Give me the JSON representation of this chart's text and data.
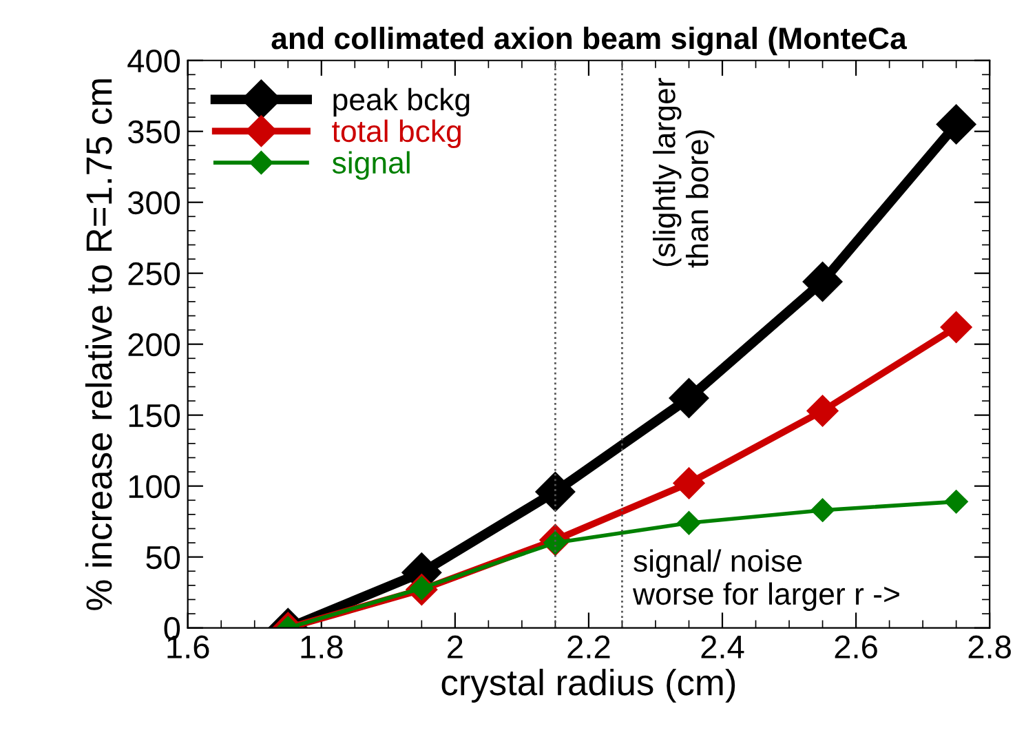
{
  "chart_data": {
    "type": "line",
    "title": "and collimated axion beam signal (MonteCa",
    "xlabel": "crystal radius (cm)",
    "ylabel": "% increase relative to R=1.75 cm",
    "x": [
      1.75,
      1.95,
      2.15,
      2.35,
      2.55,
      2.75
    ],
    "series": [
      {
        "name": "peak bckg",
        "color": "#000000",
        "values": [
          0,
          39,
          96,
          162,
          244,
          355
        ]
      },
      {
        "name": "total bckg",
        "color": "#cc0000",
        "values": [
          0,
          27,
          62,
          102,
          153,
          212
        ]
      },
      {
        "name": "signal",
        "color": "#008000",
        "values": [
          0,
          28,
          60,
          74,
          83,
          89
        ]
      }
    ],
    "xlim": [
      1.6,
      2.8
    ],
    "xticks": [
      1.6,
      1.8,
      2,
      2.2,
      2.4,
      2.6,
      2.8
    ],
    "ylim": [
      0,
      400
    ],
    "yticks": [
      0,
      50,
      100,
      150,
      200,
      250,
      300,
      350,
      400
    ],
    "ref_lines": [
      {
        "axis": "x",
        "value": 2.15,
        "color": "#555555",
        "line_style": "dotted"
      },
      {
        "axis": "x",
        "value": 2.25,
        "color": "#555555",
        "line_style": "dotted"
      }
    ],
    "annotations": [
      "(slightly larger\nthan bore)",
      "signal/ noise\nworse for larger r ->"
    ],
    "marker": "diamond",
    "line_style": "solid",
    "grid": false,
    "legend": "top left"
  }
}
